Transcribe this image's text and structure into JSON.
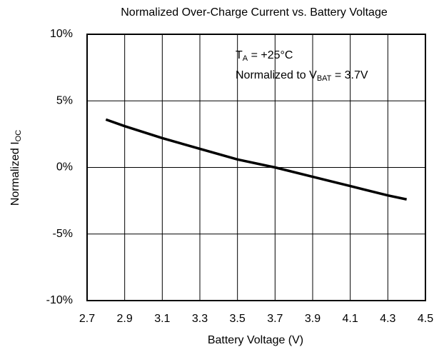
{
  "chart_data": {
    "type": "line",
    "title": "Normalized Over-Charge Current vs. Battery Voltage",
    "x_label": "Battery Voltage (V)",
    "y_label": [
      "Normalized I",
      "OC"
    ],
    "annotations": [
      [
        "T",
        "A",
        " = +25°C"
      ],
      [
        "Normalized to V",
        "BAT",
        " = 3.7V"
      ]
    ],
    "xlim": [
      2.7,
      4.5
    ],
    "xticks": [
      2.7,
      2.9,
      3.1,
      3.3,
      3.5,
      3.7,
      3.9,
      4.1,
      4.3,
      4.5
    ],
    "ylim": [
      -10,
      10
    ],
    "yticks": [
      {
        "value": -10,
        "label": "-10%"
      },
      {
        "value": -5,
        "label": "-5%"
      },
      {
        "value": 0,
        "label": "0%"
      },
      {
        "value": 5,
        "label": "5%"
      },
      {
        "value": 10,
        "label": "10%"
      }
    ],
    "grid": true,
    "x": [
      2.8,
      2.9,
      3.1,
      3.3,
      3.5,
      3.7,
      3.9,
      4.1,
      4.3,
      4.4
    ],
    "series": [
      {
        "color": "#000000",
        "values": [
          3.6,
          3.1,
          2.2,
          1.4,
          0.6,
          0,
          -0.7,
          -1.4,
          -2.1,
          -2.4
        ]
      }
    ]
  }
}
